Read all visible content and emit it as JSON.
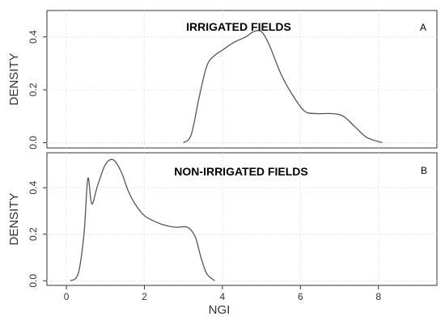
{
  "chart_data": [
    {
      "type": "line",
      "panel": "A",
      "title": "IRRIGATED FIELDS",
      "ylabel": "DENSITY",
      "xlabel": "",
      "xlim": [
        -0.5,
        9.5
      ],
      "ylim": [
        -0.02,
        0.5
      ],
      "xticks": [
        "0",
        "2",
        "4",
        "6",
        "8"
      ],
      "yticks": [
        "0.0",
        "0.2",
        "0.4"
      ],
      "grid": true,
      "series": [
        {
          "x": [
            3.0,
            3.2,
            3.4,
            3.6,
            3.8,
            4.0,
            4.3,
            4.6,
            4.8,
            5.0,
            5.2,
            5.5,
            5.8,
            6.1,
            6.4,
            6.8,
            7.1,
            7.4,
            7.7,
            8.1
          ],
          "y": [
            0.0,
            0.03,
            0.17,
            0.29,
            0.33,
            0.35,
            0.38,
            0.4,
            0.42,
            0.42,
            0.37,
            0.26,
            0.18,
            0.12,
            0.11,
            0.11,
            0.1,
            0.06,
            0.02,
            0.0
          ]
        }
      ]
    },
    {
      "type": "line",
      "panel": "B",
      "title": "NON-IRRIGATED FIELDS",
      "ylabel": "DENSITY",
      "xlabel": "NGI",
      "xlim": [
        -0.5,
        9.5
      ],
      "ylim": [
        -0.02,
        0.55
      ],
      "xticks": [
        "0",
        "2",
        "4",
        "6",
        "8"
      ],
      "yticks": [
        "0.0",
        "0.2",
        "0.4"
      ],
      "grid": true,
      "series": [
        {
          "x": [
            0.1,
            0.3,
            0.45,
            0.55,
            0.65,
            0.8,
            1.0,
            1.2,
            1.4,
            1.6,
            1.8,
            2.0,
            2.2,
            2.5,
            2.8,
            3.1,
            3.3,
            3.45,
            3.6,
            3.8
          ],
          "y": [
            0.0,
            0.03,
            0.2,
            0.44,
            0.33,
            0.41,
            0.5,
            0.52,
            0.47,
            0.38,
            0.32,
            0.28,
            0.26,
            0.24,
            0.23,
            0.23,
            0.19,
            0.1,
            0.03,
            0.0
          ]
        }
      ]
    }
  ]
}
